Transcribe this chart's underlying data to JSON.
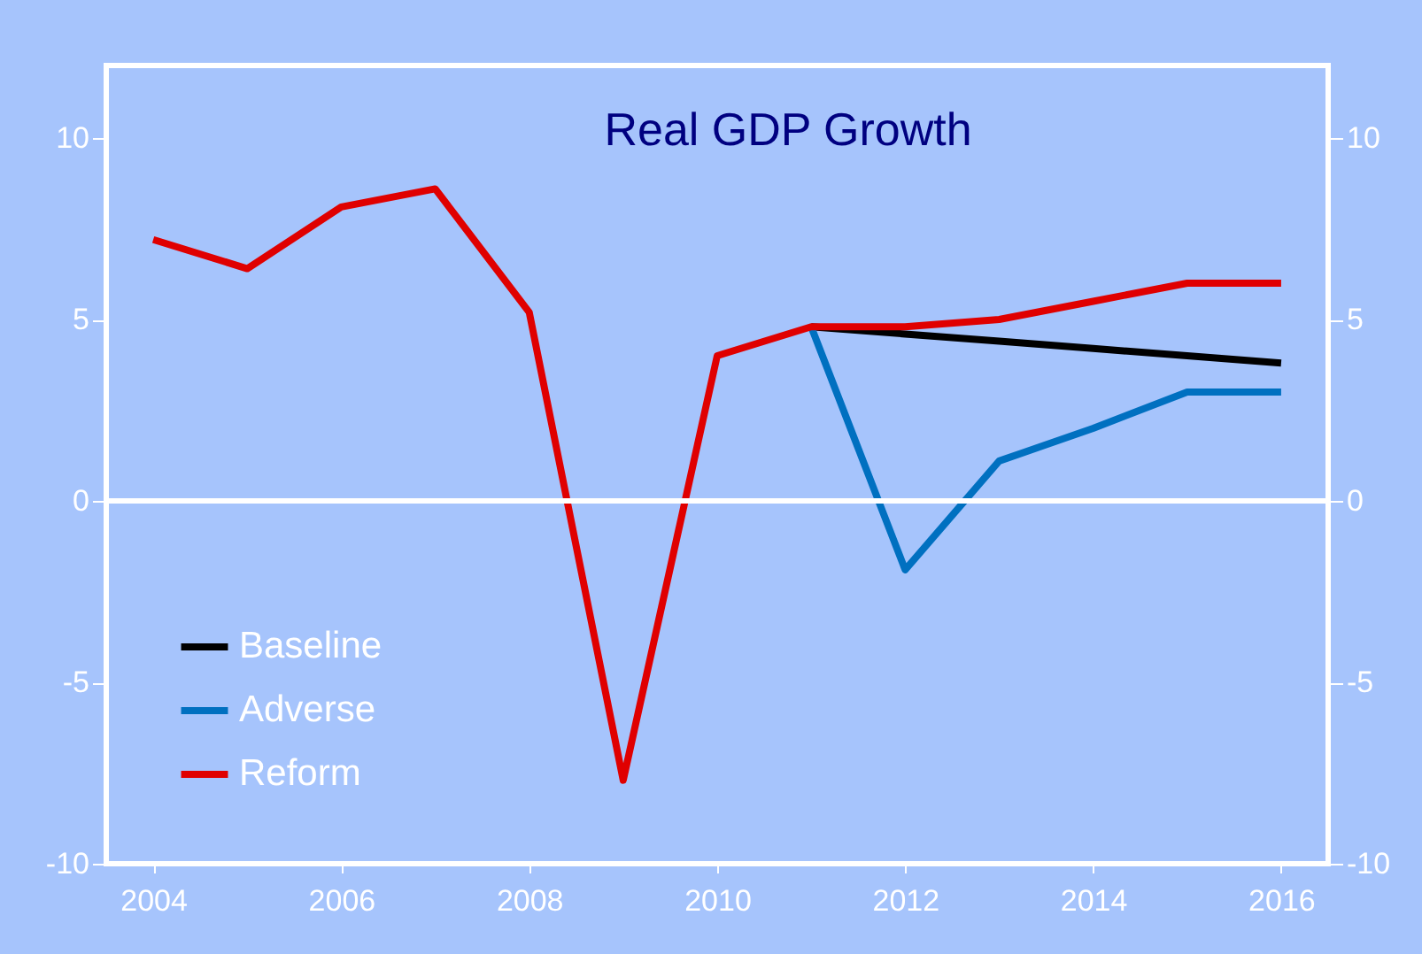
{
  "chart_data": {
    "type": "line",
    "title": "Real GDP Growth",
    "x": [
      2004,
      2005,
      2006,
      2007,
      2008,
      2009,
      2010,
      2011,
      2012,
      2013,
      2014,
      2015,
      2016
    ],
    "series": [
      {
        "name": "Baseline",
        "color": "#000000",
        "values": [
          null,
          null,
          null,
          null,
          null,
          null,
          null,
          4.8,
          4.6,
          4.4,
          4.2,
          4.0,
          3.8
        ]
      },
      {
        "name": "Adverse",
        "color": "#0070c0",
        "values": [
          null,
          null,
          null,
          null,
          null,
          null,
          null,
          4.8,
          -1.9,
          1.1,
          2.0,
          3.0,
          3.0
        ]
      },
      {
        "name": "Reform",
        "color": "#e00000",
        "values": [
          7.2,
          6.4,
          8.1,
          8.6,
          5.2,
          -7.7,
          4.0,
          4.8,
          4.8,
          5.0,
          5.5,
          6.0,
          6.0
        ]
      }
    ],
    "xlim": [
      2003.5,
      2016.5
    ],
    "xticks": [
      2004,
      2006,
      2008,
      2010,
      2012,
      2014,
      2016
    ],
    "ylim": [
      -10,
      12
    ],
    "yticks": [
      -10,
      -5,
      0,
      5,
      10
    ],
    "y2lim": [
      -10,
      12
    ],
    "y2ticks": [
      -10,
      -5,
      0,
      5,
      10
    ],
    "ref_lines": [
      {
        "axis": "y",
        "value": 0,
        "color": "#ffffff"
      }
    ],
    "grid": false,
    "legend": "bottom left",
    "marker": "none",
    "line_style": "solid"
  }
}
